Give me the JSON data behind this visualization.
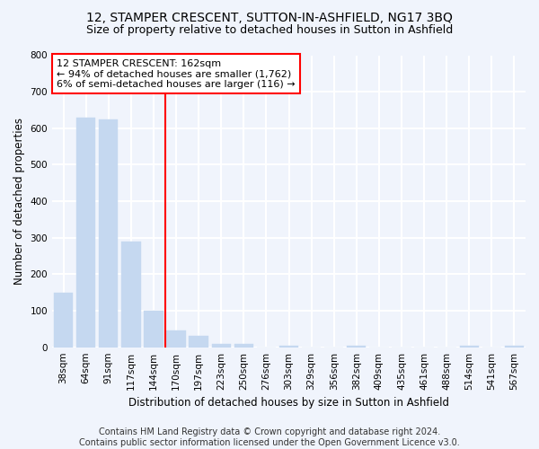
{
  "title": "12, STAMPER CRESCENT, SUTTON-IN-ASHFIELD, NG17 3BQ",
  "subtitle": "Size of property relative to detached houses in Sutton in Ashfield",
  "xlabel": "Distribution of detached houses by size in Sutton in Ashfield",
  "ylabel": "Number of detached properties",
  "categories": [
    "38sqm",
    "64sqm",
    "91sqm",
    "117sqm",
    "144sqm",
    "170sqm",
    "197sqm",
    "223sqm",
    "250sqm",
    "276sqm",
    "303sqm",
    "329sqm",
    "356sqm",
    "382sqm",
    "409sqm",
    "435sqm",
    "461sqm",
    "488sqm",
    "514sqm",
    "541sqm",
    "567sqm"
  ],
  "values": [
    150,
    630,
    625,
    289,
    100,
    47,
    30,
    10,
    10,
    0,
    5,
    0,
    0,
    5,
    0,
    0,
    0,
    0,
    5,
    0,
    5
  ],
  "bar_color": "#c5d8f0",
  "bar_edge_color": "#c5d8f0",
  "vline_x": 4.5,
  "vline_color": "red",
  "annotation_text": "12 STAMPER CRESCENT: 162sqm\n← 94% of detached houses are smaller (1,762)\n6% of semi-detached houses are larger (116) →",
  "annotation_box_color": "white",
  "annotation_box_edge_color": "red",
  "ylim": [
    0,
    800
  ],
  "yticks": [
    0,
    100,
    200,
    300,
    400,
    500,
    600,
    700,
    800
  ],
  "footnote": "Contains HM Land Registry data © Crown copyright and database right 2024.\nContains public sector information licensed under the Open Government Licence v3.0.",
  "bg_color": "#f0f4fc",
  "plot_bg_color": "#f0f4fc",
  "grid_color": "white",
  "title_fontsize": 10,
  "subtitle_fontsize": 9,
  "axis_label_fontsize": 8.5,
  "tick_fontsize": 7.5,
  "annotation_fontsize": 8,
  "footnote_fontsize": 7
}
